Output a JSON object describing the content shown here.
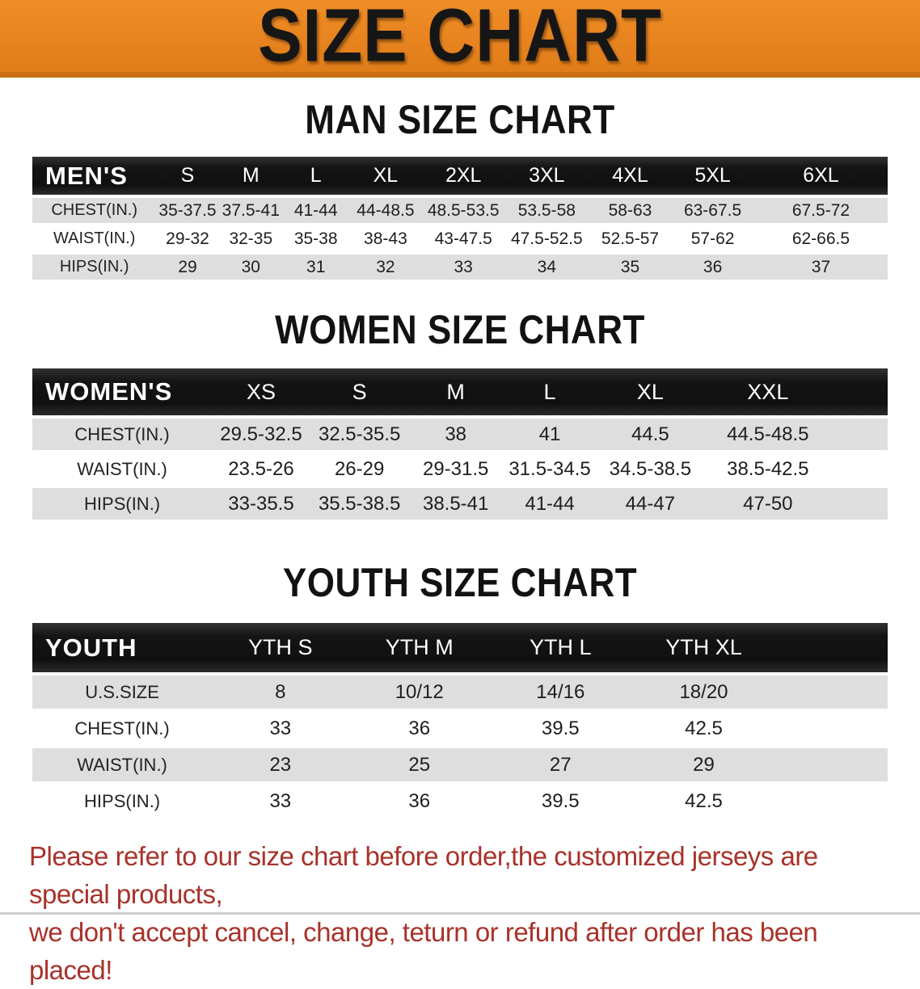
{
  "banner": {
    "title": "SIZE CHART"
  },
  "colors": {
    "banner_bg": "#E8841F",
    "banner_edge": "#C96E12",
    "banner_text": "#161616",
    "header_bar": "#141414",
    "header_text": "#FFFFFF",
    "row_alt_gray": "#DEDEDE",
    "row_white": "#FFFFFF",
    "cell_text": "#1E1E1E",
    "footnote_red": "#A8322A"
  },
  "sections": [
    {
      "title": "MAN SIZE CHART",
      "table": {
        "label": "MEN'S",
        "sizes": [
          "S",
          "M",
          "L",
          "XL",
          "2XL",
          "3XL",
          "4XL",
          "5XL",
          "6XL"
        ],
        "rows": [
          {
            "label": "CHEST(IN.)",
            "values": [
              "35-37.5",
              "37.5-41",
              "41-44",
              "44-48.5",
              "48.5-53.5",
              "53.5-58",
              "58-63",
              "63-67.5",
              "67.5-72"
            ]
          },
          {
            "label": "WAIST(IN.)",
            "values": [
              "29-32",
              "32-35",
              "35-38",
              "38-43",
              "43-47.5",
              "47.5-52.5",
              "52.5-57",
              "57-62",
              "62-66.5"
            ]
          },
          {
            "label": "HIPS(IN.)",
            "values": [
              "29",
              "30",
              "31",
              "32",
              "33",
              "34",
              "35",
              "36",
              "37"
            ]
          }
        ]
      }
    },
    {
      "title": "WOMEN SIZE CHART",
      "table": {
        "label": "WOMEN'S",
        "sizes": [
          "XS",
          "S",
          "M",
          "L",
          "XL",
          "XXL"
        ],
        "rows": [
          {
            "label": "CHEST(IN.)",
            "values": [
              "29.5-32.5",
              "32.5-35.5",
              "38",
              "41",
              "44.5",
              "44.5-48.5"
            ]
          },
          {
            "label": "WAIST(IN.)",
            "values": [
              "23.5-26",
              "26-29",
              "29-31.5",
              "31.5-34.5",
              "34.5-38.5",
              "38.5-42.5"
            ]
          },
          {
            "label": "HIPS(IN.)",
            "values": [
              "33-35.5",
              "35.5-38.5",
              "38.5-41",
              "41-44",
              "44-47",
              "47-50"
            ]
          }
        ]
      }
    },
    {
      "title": "YOUTH SIZE CHART",
      "table": {
        "label": "YOUTH",
        "sizes": [
          "YTH S",
          "YTH M",
          "YTH L",
          "YTH XL"
        ],
        "rows": [
          {
            "label": "U.S.SIZE",
            "values": [
              "8",
              "10/12",
              "14/16",
              "18/20"
            ]
          },
          {
            "label": "CHEST(IN.)",
            "values": [
              "33",
              "36",
              "39.5",
              "42.5"
            ]
          },
          {
            "label": "WAIST(IN.)",
            "values": [
              "23",
              "25",
              "27",
              "29"
            ]
          },
          {
            "label": "HIPS(IN.)",
            "values": [
              "33",
              "36",
              "39.5",
              "42.5"
            ]
          }
        ]
      }
    }
  ],
  "footnote": {
    "line1": "Please refer to our size chart before order,the customized jerseys are special products,",
    "line2": "we don't accept cancel, change, teturn or refund after order has been placed!"
  }
}
